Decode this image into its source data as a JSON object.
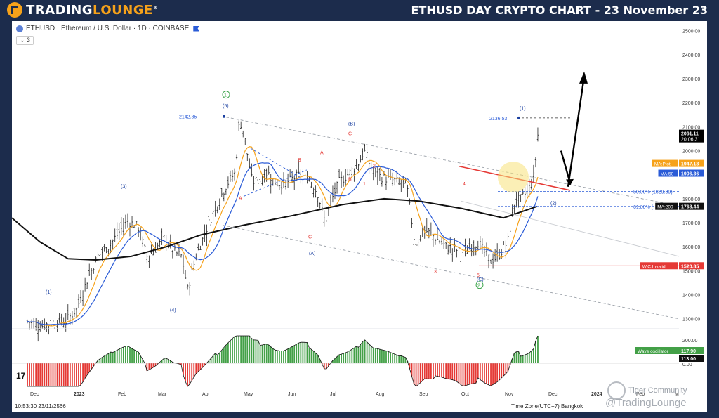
{
  "header": {
    "brand_part1": "TRADING",
    "brand_part2": "LOUNGE",
    "brand_suffix": "®",
    "title": "ETHUSD DAY CRYPTO CHART - 23 November 23"
  },
  "chart_header": {
    "symbol_line": "ETHUSD · Ethereum / U.S. Dollar · 1D · COINBASE",
    "indicator_count": "3"
  },
  "footer": {
    "timestamp": "10:53:30 23/11/2566",
    "timezone": "Time Zone(UTC+7) Bangkok",
    "watermark_1": "Tiger Community",
    "watermark_2": "@TradingLounge",
    "tv_logo": "17"
  },
  "chart_data": {
    "type": "candlestick",
    "y_axis_prices": [
      "2500.00",
      "2400.00",
      "2300.00",
      "2200.00",
      "2100.00",
      "2000.00",
      "1900.00",
      "1800.00",
      "1700.00",
      "1600.00",
      "1500.00",
      "1400.00",
      "1300.00"
    ],
    "ylim": [
      1270,
      2540
    ],
    "x_axis_labels": [
      "Dec",
      "2023",
      "Feb",
      "Mar",
      "Apr",
      "May",
      "Jun",
      "Jul",
      "Aug",
      "Sep",
      "Oct",
      "Nov",
      "Dec",
      "2024",
      "Feb",
      "M"
    ],
    "price_tags": [
      {
        "label": "",
        "value": "2061.11",
        "sub": "20:06:31",
        "color": "#000000"
      },
      {
        "label": "MA:Plot",
        "value": "1947.18",
        "color": "#f6a21a"
      },
      {
        "label": "MA:50",
        "value": "1906.36",
        "color": "#2a5bd7"
      },
      {
        "label": "MA:200",
        "value": "1768.44",
        "color": "#111111"
      },
      {
        "label": "W.C.Invalid",
        "value": "1520.85",
        "color": "#e53935"
      }
    ],
    "levels": [
      {
        "label": "2142.85",
        "price": 2142.85
      },
      {
        "label": "2136.53",
        "price": 2136.53
      },
      {
        "label": "50.00% (1829.89)",
        "price": 1829.89
      },
      {
        "label": "61.80% (",
        "price": 1768
      },
      {
        "label": "W.C.Invalid",
        "price": 1520.85
      }
    ],
    "wave_labels": [
      {
        "text": "(1)",
        "price": 1405,
        "color": "#1a3fa0"
      },
      {
        "text": "(3)",
        "price": 1845,
        "color": "#1a3fa0"
      },
      {
        "text": "(4)",
        "price": 1330,
        "color": "#1a3fa0"
      },
      {
        "text": "(5)",
        "price": 2180,
        "color": "#1a3fa0"
      },
      {
        "text": "1",
        "price": 2225,
        "color": "#2e9e3e"
      },
      {
        "text": "A",
        "price": 1795,
        "color": "#e53935"
      },
      {
        "text": "B",
        "price": 1955,
        "color": "#e53935"
      },
      {
        "text": "C",
        "price": 1635,
        "color": "#e53935"
      },
      {
        "text": "(A)",
        "price": 1565,
        "color": "#1a3fa0"
      },
      {
        "text": "A",
        "price": 1985,
        "color": "#e53935"
      },
      {
        "text": "B",
        "price": 1875,
        "color": "#e53935"
      },
      {
        "text": "(B)",
        "price": 2105,
        "color": "#1a3fa0"
      },
      {
        "text": "C",
        "price": 2065,
        "color": "#e53935"
      },
      {
        "text": "1",
        "price": 1855,
        "color": "#e53935"
      },
      {
        "text": "2",
        "price": 1930,
        "color": "#e53935"
      },
      {
        "text": "3",
        "price": 1490,
        "color": "#e53935"
      },
      {
        "text": "4",
        "price": 1855,
        "color": "#e53935"
      },
      {
        "text": "5",
        "price": 1475,
        "color": "#e53935"
      },
      {
        "text": "(C)",
        "price": 1458,
        "color": "#1a3fa0"
      },
      {
        "text": "2",
        "price": 1432,
        "color": "#2e9e3e"
      },
      {
        "text": "(1)",
        "price": 2170,
        "color": "#1a3fa0"
      },
      {
        "text": "(2)",
        "price": 1775,
        "color": "#1a3fa0"
      }
    ],
    "oscillator": {
      "label": "Wave oscillator",
      "value_1": "117.90",
      "value_2": "113.00",
      "axis": [
        "200.00",
        "100.00",
        "0.00"
      ]
    },
    "legend_visible": false,
    "grid": false
  }
}
